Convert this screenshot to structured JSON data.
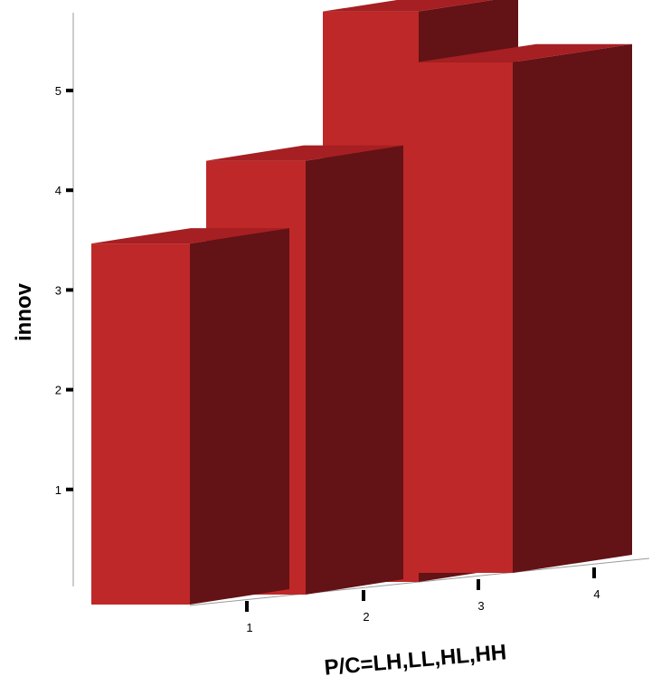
{
  "chart_data": {
    "type": "bar",
    "title": "",
    "xlabel": "P/C=LH,LL,HL,HH",
    "ylabel": "innov",
    "categories": [
      "1",
      "2",
      "3",
      "4"
    ],
    "values": [
      3.62,
      4.35,
      5.72,
      5.12
    ],
    "ylim": [
      0,
      5.9
    ],
    "yticks": [
      1,
      2,
      3,
      4,
      5
    ],
    "grid": false,
    "legend": "none",
    "colors": {
      "front": "#be2828",
      "side": "#631215",
      "top": "#a61f22"
    }
  }
}
